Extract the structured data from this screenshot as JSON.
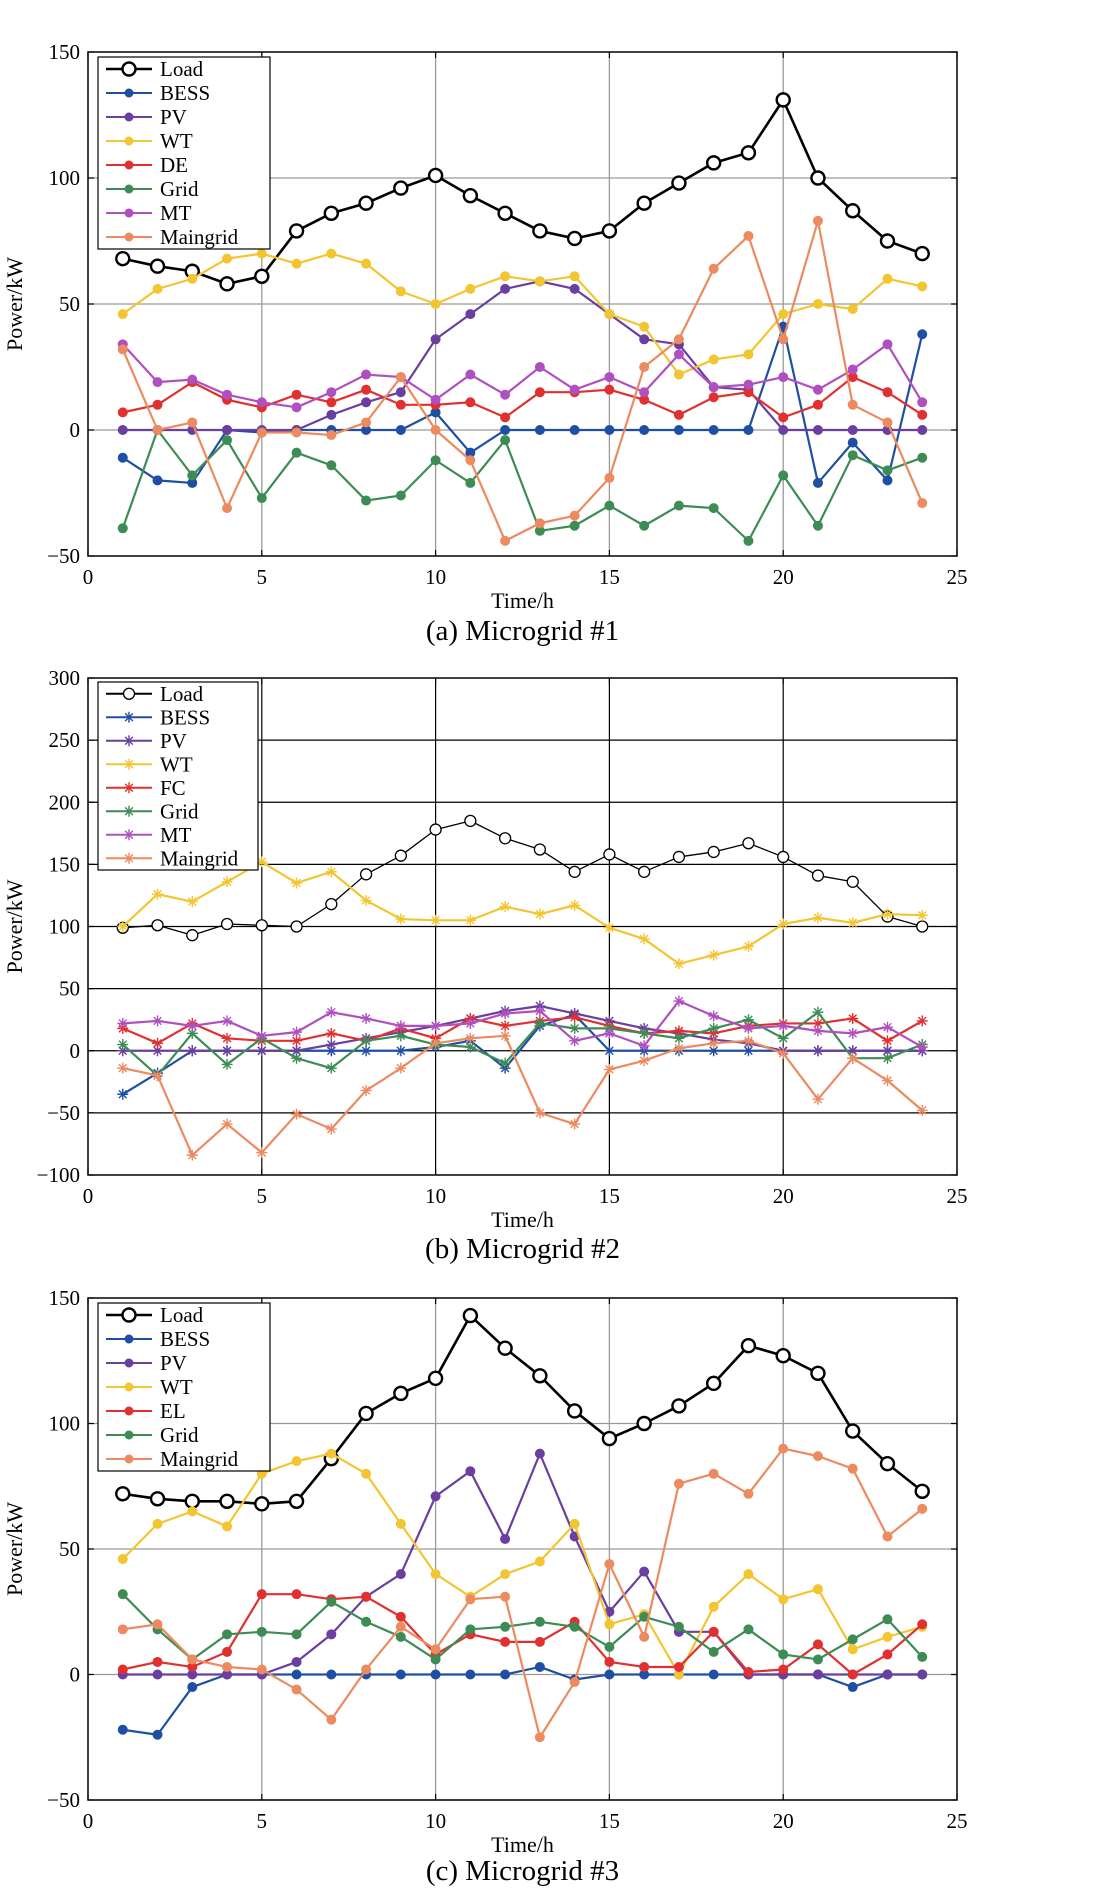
{
  "colors": {
    "Load": "#000000",
    "BESS": "#1f4fa3",
    "PV": "#6a3fa0",
    "WT": "#f2c531",
    "DE": "#e03030",
    "FC": "#e03030",
    "EL": "#e03030",
    "Grid": "#3e8c55",
    "MT": "#b050c0",
    "Maingrid": "#ec8a60"
  },
  "chart_data": [
    {
      "type": "line",
      "caption": "(a) Microgrid #1",
      "xlabel": "Time/h",
      "ylabel": "Power/kW",
      "xlim": [
        0,
        25
      ],
      "ylim": [
        -50,
        150
      ],
      "xticks": [
        0,
        5,
        10,
        15,
        20,
        25
      ],
      "yticks": [
        -50,
        0,
        50,
        100,
        150
      ],
      "grid_x": [
        5,
        10,
        15,
        20
      ],
      "grid_y": [
        0,
        50,
        100
      ],
      "marker": "filled",
      "legend": "top-left",
      "x": [
        1,
        2,
        3,
        4,
        5,
        6,
        7,
        8,
        9,
        10,
        11,
        12,
        13,
        14,
        15,
        16,
        17,
        18,
        19,
        20,
        21,
        22,
        23,
        24
      ],
      "series": [
        {
          "name": "Load",
          "values": [
            68,
            65,
            63,
            58,
            61,
            79,
            86,
            90,
            96,
            101,
            93,
            86,
            79,
            76,
            79,
            90,
            98,
            106,
            110,
            131,
            100,
            87,
            75,
            70
          ]
        },
        {
          "name": "BESS",
          "values": [
            -11,
            -20,
            -21,
            0,
            -1,
            0,
            0,
            0,
            0,
            7,
            -9,
            0,
            0,
            0,
            0,
            0,
            0,
            0,
            0,
            41,
            -21,
            -5,
            -20,
            38
          ]
        },
        {
          "name": "PV",
          "values": [
            0,
            0,
            0,
            0,
            0,
            0,
            6,
            11,
            15,
            36,
            46,
            56,
            59,
            56,
            46,
            36,
            34,
            17,
            16,
            0,
            0,
            0,
            0,
            0
          ]
        },
        {
          "name": "WT",
          "values": [
            46,
            56,
            60,
            68,
            70,
            66,
            70,
            66,
            55,
            50,
            56,
            61,
            59,
            61,
            46,
            41,
            22,
            28,
            30,
            46,
            50,
            48,
            60,
            57
          ]
        },
        {
          "name": "DE",
          "values": [
            7,
            10,
            19,
            12,
            9,
            14,
            11,
            16,
            10,
            10,
            11,
            5,
            15,
            15,
            16,
            12,
            6,
            13,
            15,
            5,
            10,
            21,
            15,
            6
          ]
        },
        {
          "name": "Grid",
          "values": [
            -39,
            0,
            -18,
            -4,
            -27,
            -9,
            -14,
            -28,
            -26,
            -12,
            -21,
            -4,
            -40,
            -38,
            -30,
            -38,
            -30,
            -31,
            -44,
            -18,
            -38,
            -10,
            -16,
            -11
          ]
        },
        {
          "name": "MT",
          "values": [
            34,
            19,
            20,
            14,
            11,
            9,
            15,
            22,
            21,
            12,
            22,
            14,
            25,
            16,
            21,
            15,
            30,
            17,
            18,
            21,
            16,
            24,
            34,
            11
          ]
        },
        {
          "name": "Maingrid",
          "values": [
            32,
            0,
            3,
            -31,
            -1,
            -1,
            -2,
            3,
            21,
            0,
            -12,
            -44,
            -37,
            -34,
            -19,
            25,
            36,
            64,
            77,
            36,
            83,
            10,
            3,
            -29
          ]
        }
      ]
    },
    {
      "type": "line",
      "caption": "(b) Microgrid #2",
      "xlabel": "Time/h",
      "ylabel": "Power/kW",
      "xlim": [
        0,
        25
      ],
      "ylim": [
        -100,
        300
      ],
      "xticks": [
        0,
        5,
        10,
        15,
        20,
        25
      ],
      "yticks": [
        -100,
        -50,
        0,
        50,
        100,
        150,
        200,
        250,
        300
      ],
      "grid_x": [
        5,
        10,
        15,
        20
      ],
      "grid_y": [
        -50,
        0,
        50,
        100,
        150,
        200,
        250
      ],
      "marker": "star",
      "legend": "top-left",
      "x": [
        1,
        2,
        3,
        4,
        5,
        6,
        7,
        8,
        9,
        10,
        11,
        12,
        13,
        14,
        15,
        16,
        17,
        18,
        19,
        20,
        21,
        22,
        23,
        24
      ],
      "series": [
        {
          "name": "Load",
          "values": [
            99,
            101,
            93,
            102,
            101,
            100,
            118,
            142,
            157,
            178,
            185,
            171,
            162,
            144,
            158,
            144,
            156,
            160,
            167,
            156,
            141,
            136,
            108,
            100
          ]
        },
        {
          "name": "BESS",
          "values": [
            -35,
            -18,
            0,
            0,
            0,
            0,
            0,
            0,
            0,
            3,
            8,
            -14,
            20,
            29,
            0,
            0,
            0,
            0,
            0,
            0,
            0,
            0,
            0,
            0
          ]
        },
        {
          "name": "PV",
          "values": [
            0,
            0,
            0,
            0,
            0,
            0,
            5,
            10,
            15,
            20,
            26,
            32,
            36,
            30,
            24,
            18,
            14,
            9,
            6,
            0,
            0,
            0,
            0,
            0
          ]
        },
        {
          "name": "WT",
          "values": [
            100,
            126,
            120,
            136,
            152,
            135,
            144,
            121,
            106,
            105,
            105,
            116,
            110,
            117,
            99,
            90,
            70,
            77,
            84,
            102,
            107,
            103,
            110,
            109
          ]
        },
        {
          "name": "FC",
          "values": [
            18,
            6,
            22,
            10,
            8,
            8,
            14,
            8,
            18,
            10,
            26,
            20,
            24,
            27,
            20,
            14,
            16,
            14,
            20,
            22,
            22,
            26,
            8,
            24
          ]
        },
        {
          "name": "Grid",
          "values": [
            5,
            -20,
            14,
            -11,
            10,
            -6,
            -14,
            8,
            12,
            5,
            3,
            -10,
            22,
            18,
            18,
            14,
            10,
            18,
            25,
            10,
            31,
            -6,
            -6,
            5
          ]
        },
        {
          "name": "MT",
          "values": [
            22,
            24,
            20,
            24,
            12,
            15,
            31,
            26,
            20,
            20,
            22,
            30,
            32,
            8,
            14,
            4,
            40,
            28,
            18,
            20,
            16,
            14,
            19,
            3
          ]
        },
        {
          "name": "Maingrid",
          "values": [
            -14,
            -20,
            -84,
            -59,
            -82,
            -51,
            -63,
            -32,
            -14,
            6,
            10,
            12,
            -50,
            -59,
            -15,
            -8,
            2,
            6,
            8,
            -2,
            -39,
            -6,
            -24,
            -48
          ]
        }
      ]
    },
    {
      "type": "line",
      "caption": "(c) Microgrid #3",
      "xlabel": "Time/h",
      "ylabel": "Power/kW",
      "xlim": [
        0,
        25
      ],
      "ylim": [
        -50,
        150
      ],
      "xticks": [
        0,
        5,
        10,
        15,
        20,
        25
      ],
      "yticks": [
        -50,
        0,
        50,
        100,
        150
      ],
      "grid_x": [
        5,
        10,
        15,
        20
      ],
      "grid_y": [
        0,
        50,
        100
      ],
      "marker": "filled",
      "legend": "top-left",
      "x": [
        1,
        2,
        3,
        4,
        5,
        6,
        7,
        8,
        9,
        10,
        11,
        12,
        13,
        14,
        15,
        16,
        17,
        18,
        19,
        20,
        21,
        22,
        23,
        24
      ],
      "series": [
        {
          "name": "Load",
          "values": [
            72,
            70,
            69,
            69,
            68,
            69,
            86,
            104,
            112,
            118,
            143,
            130,
            119,
            105,
            94,
            100,
            107,
            116,
            131,
            127,
            120,
            97,
            84,
            73
          ]
        },
        {
          "name": "BESS",
          "values": [
            -22,
            -24,
            -5,
            0,
            0,
            0,
            0,
            0,
            0,
            0,
            0,
            0,
            3,
            -2,
            0,
            0,
            0,
            0,
            0,
            0,
            0,
            -5,
            0,
            0
          ]
        },
        {
          "name": "PV",
          "values": [
            0,
            0,
            0,
            0,
            0,
            5,
            16,
            31,
            40,
            71,
            81,
            54,
            88,
            55,
            25,
            41,
            17,
            17,
            0,
            0,
            0,
            0,
            0,
            0
          ]
        },
        {
          "name": "WT",
          "values": [
            46,
            60,
            65,
            59,
            80,
            85,
            88,
            80,
            60,
            40,
            31,
            40,
            45,
            60,
            20,
            24,
            0,
            27,
            40,
            30,
            34,
            10,
            15,
            19
          ]
        },
        {
          "name": "EL",
          "values": [
            2,
            5,
            3,
            9,
            32,
            32,
            30,
            31,
            23,
            8,
            16,
            13,
            13,
            21,
            5,
            3,
            3,
            17,
            1,
            2,
            12,
            0,
            8,
            20
          ]
        },
        {
          "name": "Grid",
          "values": [
            32,
            18,
            6,
            16,
            17,
            16,
            29,
            21,
            15,
            6,
            18,
            19,
            21,
            19,
            11,
            23,
            19,
            9,
            18,
            8,
            6,
            14,
            22,
            7
          ]
        },
        {
          "name": "Maingrid",
          "values": [
            18,
            20,
            6,
            3,
            2,
            -6,
            -18,
            2,
            19,
            10,
            30,
            31,
            -25,
            -3,
            44,
            15,
            76,
            80,
            72,
            90,
            87,
            82,
            55,
            66
          ]
        }
      ]
    }
  ]
}
